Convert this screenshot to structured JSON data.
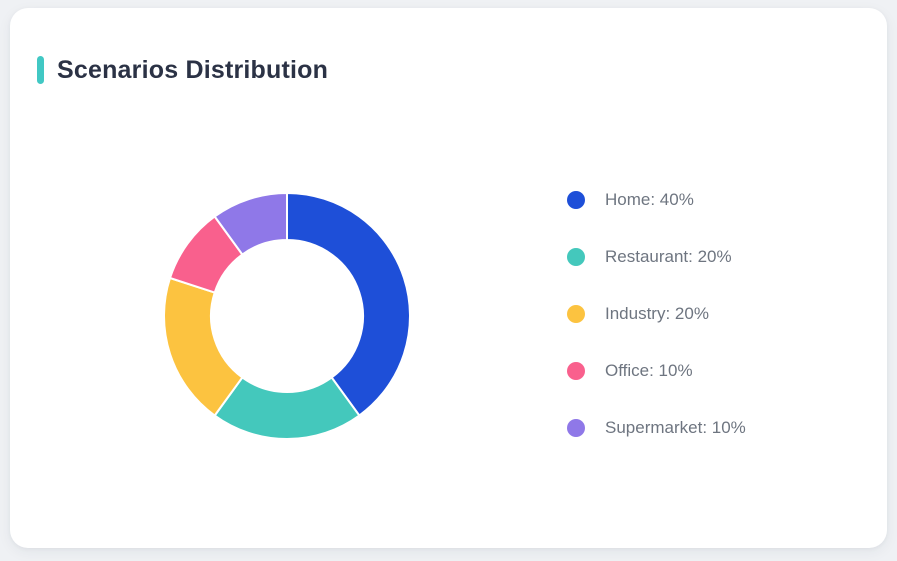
{
  "card": {
    "title": "Scenarios Distribution",
    "accent_color": "#41c8c4"
  },
  "chart_data": {
    "type": "pie",
    "variant": "donut",
    "title": "Scenarios Distribution",
    "categories": [
      "Home",
      "Restaurant",
      "Industry",
      "Office",
      "Supermarket"
    ],
    "values": [
      40,
      20,
      20,
      10,
      10
    ],
    "value_unit": "%",
    "colors": [
      "#1e4fd8",
      "#44c8bc",
      "#fcc340",
      "#f9608d",
      "#8f78e8"
    ],
    "start_angle_deg": 0,
    "direction": "clockwise",
    "inner_radius_ratio": 0.62,
    "slice_gap_color": "#ffffff",
    "legend_position": "right",
    "legend": {
      "items": [
        {
          "label": "Home: 40%",
          "color": "#1e4fd8"
        },
        {
          "label": "Restaurant: 20%",
          "color": "#44c8bc"
        },
        {
          "label": "Industry: 20%",
          "color": "#fcc340"
        },
        {
          "label": "Office: 10%",
          "color": "#f9608d"
        },
        {
          "label": "Supermarket: 10%",
          "color": "#8f78e8"
        }
      ]
    }
  }
}
